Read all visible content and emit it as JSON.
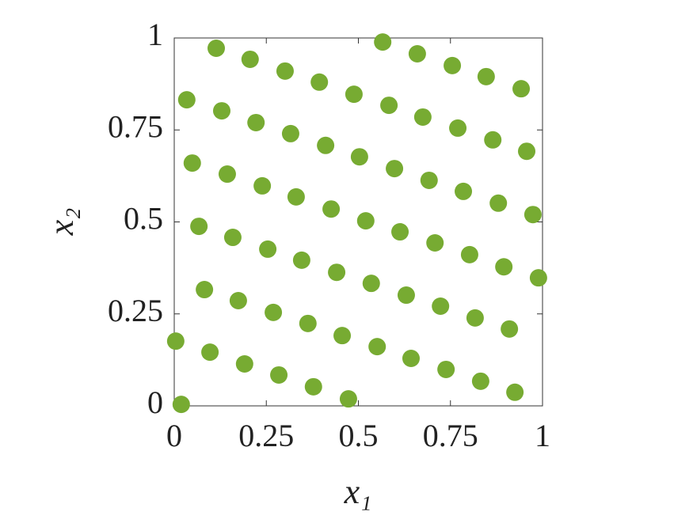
{
  "chart_data": {
    "type": "scatter",
    "xlabel": "x₁",
    "ylabel": "x₂",
    "color": "#77ab32",
    "xlim": [
      0,
      1
    ],
    "ylim": [
      0,
      1
    ],
    "xticks": [
      0,
      0.25,
      0.5,
      0.75,
      1
    ],
    "yticks": [
      0,
      0.25,
      0.5,
      0.75,
      1
    ],
    "grid": false,
    "x": [
      0.019,
      0.004,
      0.097,
      0.191,
      0.284,
      0.378,
      0.473,
      0.082,
      0.174,
      0.269,
      0.363,
      0.456,
      0.551,
      0.643,
      0.738,
      0.832,
      0.925,
      0.067,
      0.159,
      0.254,
      0.346,
      0.441,
      0.535,
      0.63,
      0.723,
      0.817,
      0.91,
      0.989,
      0.895,
      0.802,
      0.708,
      0.613,
      0.52,
      0.426,
      0.331,
      0.239,
      0.144,
      0.049,
      0.034,
      0.129,
      0.222,
      0.316,
      0.411,
      0.503,
      0.598,
      0.692,
      0.785,
      0.88,
      0.974,
      0.957,
      0.865,
      0.77,
      0.675,
      0.583,
      0.488,
      0.394,
      0.301,
      0.206,
      0.114,
      0.566,
      0.66,
      0.755,
      0.847,
      0.942
    ],
    "values": [
      0.004,
      0.176,
      0.146,
      0.114,
      0.084,
      0.052,
      0.019,
      0.316,
      0.286,
      0.254,
      0.224,
      0.191,
      0.161,
      0.129,
      0.099,
      0.067,
      0.037,
      0.488,
      0.458,
      0.426,
      0.396,
      0.363,
      0.333,
      0.301,
      0.271,
      0.239,
      0.209,
      0.348,
      0.378,
      0.411,
      0.443,
      0.473,
      0.503,
      0.535,
      0.568,
      0.598,
      0.63,
      0.66,
      0.832,
      0.802,
      0.77,
      0.74,
      0.708,
      0.677,
      0.645,
      0.613,
      0.583,
      0.551,
      0.52,
      0.692,
      0.723,
      0.755,
      0.785,
      0.817,
      0.847,
      0.88,
      0.91,
      0.942,
      0.972,
      0.989,
      0.957,
      0.925,
      0.895,
      0.862
    ]
  }
}
